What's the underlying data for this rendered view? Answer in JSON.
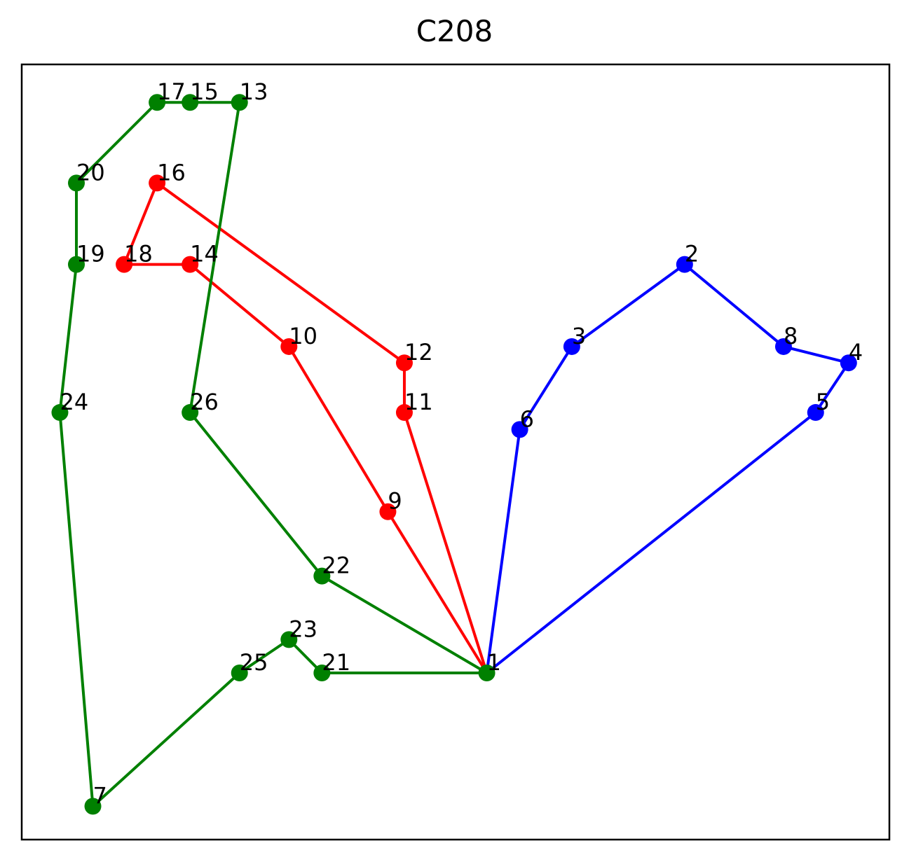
{
  "chart_data": {
    "type": "line",
    "title": "C208",
    "xlabel": "",
    "ylabel": "",
    "xlim": [
      0,
      100
    ],
    "ylim": [
      0,
      100
    ],
    "grid": false,
    "nodes": [
      {
        "id": "1",
        "x": 53.6,
        "y": 21.5
      },
      {
        "id": "2",
        "x": 76.4,
        "y": 74.2
      },
      {
        "id": "3",
        "x": 63.4,
        "y": 63.6
      },
      {
        "id": "4",
        "x": 95.3,
        "y": 61.5
      },
      {
        "id": "5",
        "x": 91.5,
        "y": 55.1
      },
      {
        "id": "6",
        "x": 57.4,
        "y": 52.9
      },
      {
        "id": "7",
        "x": 8.2,
        "y": 4.3
      },
      {
        "id": "8",
        "x": 87.8,
        "y": 63.6
      },
      {
        "id": "9",
        "x": 42.2,
        "y": 42.3
      },
      {
        "id": "10",
        "x": 30.8,
        "y": 63.6
      },
      {
        "id": "11",
        "x": 44.1,
        "y": 55.1
      },
      {
        "id": "12",
        "x": 44.1,
        "y": 61.5
      },
      {
        "id": "13",
        "x": 25.1,
        "y": 95.1
      },
      {
        "id": "14",
        "x": 19.4,
        "y": 74.2
      },
      {
        "id": "15",
        "x": 19.4,
        "y": 95.1
      },
      {
        "id": "16",
        "x": 15.6,
        "y": 84.7
      },
      {
        "id": "17",
        "x": 15.6,
        "y": 95.1
      },
      {
        "id": "18",
        "x": 11.8,
        "y": 74.2
      },
      {
        "id": "19",
        "x": 6.3,
        "y": 74.2
      },
      {
        "id": "20",
        "x": 6.3,
        "y": 84.7
      },
      {
        "id": "21",
        "x": 34.6,
        "y": 21.5
      },
      {
        "id": "22",
        "x": 34.6,
        "y": 34.0
      },
      {
        "id": "23",
        "x": 30.8,
        "y": 25.8
      },
      {
        "id": "24",
        "x": 4.4,
        "y": 55.1
      },
      {
        "id": "25",
        "x": 25.1,
        "y": 21.5
      },
      {
        "id": "26",
        "x": 19.4,
        "y": 55.1
      }
    ],
    "series": [
      {
        "color": "#0000ff",
        "route": [
          "1",
          "6",
          "3",
          "2",
          "8",
          "4",
          "5",
          "1"
        ]
      },
      {
        "color": "#ff0000",
        "route": [
          "1",
          "9",
          "10",
          "14",
          "18",
          "16",
          "12",
          "11",
          "1"
        ]
      },
      {
        "color": "#008000",
        "route": [
          "1",
          "22",
          "26",
          "13",
          "15",
          "17",
          "20",
          "19",
          "24",
          "7",
          "25",
          "23",
          "21",
          "1"
        ]
      }
    ]
  }
}
